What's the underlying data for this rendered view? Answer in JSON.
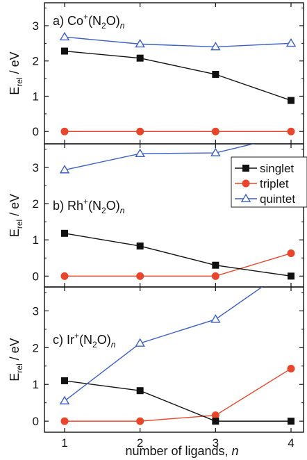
{
  "figure": {
    "xlabel": "number of ligands, ",
    "xlabel_italic": "n"
  },
  "legend": {
    "items": [
      {
        "label": "singlet",
        "color": "#111111",
        "marker": "square-filled"
      },
      {
        "label": "triplet",
        "color": "#e8452a",
        "marker": "circle-filled"
      },
      {
        "label": "quintet",
        "color": "#3b5fc4",
        "marker": "triangle-open"
      }
    ]
  },
  "chart_data": [
    {
      "type": "line",
      "panel_label": {
        "prefix": "a) Co",
        "sup": "+",
        "mid": "(N",
        "sub": "2",
        "suffix": "O)",
        "n": "n"
      },
      "ylabel": {
        "main": "E",
        "sub": "rel",
        "unit": " / eV"
      },
      "x": [
        1,
        2,
        3,
        4
      ],
      "xticks": [
        1,
        2,
        3,
        4
      ],
      "ylim": [
        -0.35,
        3.65
      ],
      "yticks": [
        0,
        1,
        2,
        3
      ],
      "series": [
        {
          "name": "singlet",
          "values": [
            2.28,
            2.08,
            1.62,
            0.88
          ]
        },
        {
          "name": "triplet",
          "values": [
            0.0,
            0.0,
            0.0,
            0.0
          ]
        },
        {
          "name": "quintet",
          "values": [
            2.68,
            2.48,
            2.4,
            2.5
          ]
        }
      ]
    },
    {
      "type": "line",
      "panel_label": {
        "prefix": "b) Rh",
        "sup": "+",
        "mid": "(N",
        "sub": "2",
        "suffix": "O)",
        "n": "n"
      },
      "ylabel": {
        "main": "E",
        "sub": "rel",
        "unit": " / eV"
      },
      "x": [
        1,
        2,
        3,
        4
      ],
      "xticks": [
        1,
        2,
        3,
        4
      ],
      "ylim": [
        -0.3,
        3.65
      ],
      "yticks": [
        0,
        1,
        2,
        3
      ],
      "series": [
        {
          "name": "singlet",
          "values": [
            1.18,
            0.83,
            0.3,
            0.0
          ]
        },
        {
          "name": "triplet",
          "values": [
            0.0,
            0.0,
            0.0,
            0.63
          ]
        },
        {
          "name": "quintet",
          "values": [
            2.93,
            3.38,
            3.4,
            3.9
          ]
        }
      ]
    },
    {
      "type": "line",
      "panel_label": {
        "prefix": "c) Ir",
        "sup": "+",
        "mid": "(N",
        "sub": "2",
        "suffix": "O)",
        "n": "n"
      },
      "ylabel": {
        "main": "E",
        "sub": "rel",
        "unit": " / eV"
      },
      "x": [
        1,
        2,
        3,
        4
      ],
      "xticks": [
        1,
        2,
        3,
        4
      ],
      "ylim": [
        -0.3,
        3.65
      ],
      "yticks": [
        0,
        1,
        2,
        3
      ],
      "series": [
        {
          "name": "singlet",
          "values": [
            1.1,
            0.83,
            0.0,
            0.0
          ]
        },
        {
          "name": "triplet",
          "values": [
            0.0,
            0.0,
            0.16,
            1.43
          ]
        },
        {
          "name": "quintet",
          "values": [
            0.55,
            2.12,
            2.77,
            4.2
          ]
        }
      ]
    }
  ]
}
